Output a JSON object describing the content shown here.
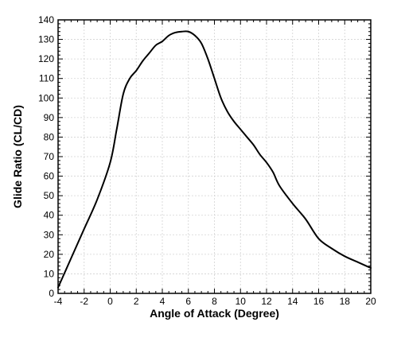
{
  "chart_data": {
    "type": "line",
    "title": "",
    "xlabel": "Angle of Attack (Degree)",
    "ylabel": "Glide Ratio (CL/CD)",
    "xlim": [
      -4,
      20
    ],
    "ylim": [
      0,
      140
    ],
    "x_ticks": [
      -4,
      -2,
      0,
      2,
      4,
      6,
      8,
      10,
      12,
      14,
      16,
      18,
      20
    ],
    "y_ticks": [
      0,
      10,
      20,
      30,
      40,
      50,
      60,
      70,
      80,
      90,
      100,
      110,
      120,
      130,
      140
    ],
    "x_tick_labels": [
      "-4",
      "-2",
      "0",
      "2",
      "4",
      "6",
      "8",
      "10",
      "12",
      "14",
      "16",
      "18",
      "20"
    ],
    "y_tick_labels": [
      "0",
      "10",
      "20",
      "30",
      "40",
      "50",
      "60",
      "70",
      "80",
      "90",
      "100",
      "110",
      "120",
      "130",
      "140"
    ],
    "grid": true,
    "line_color": "#000000",
    "series": [
      {
        "x": [
          -4,
          -3,
          -2,
          -1,
          0,
          0.5,
          1,
          1.5,
          2,
          2.5,
          3,
          3.5,
          4,
          4.5,
          5,
          5.5,
          6,
          6.5,
          7,
          7.5,
          8,
          8.5,
          9,
          9.5,
          10,
          10.5,
          11,
          11.5,
          12,
          12.5,
          13,
          14,
          15,
          16,
          17,
          18,
          19,
          20
        ],
        "y": [
          3,
          18,
          33,
          48,
          67,
          84,
          102,
          110,
          114,
          119,
          123,
          127,
          129,
          132,
          133.5,
          134,
          134,
          132,
          128,
          120,
          110,
          100,
          93,
          88,
          84,
          80,
          76,
          71,
          67,
          62,
          55,
          46,
          38,
          28,
          23,
          19,
          16,
          13
        ]
      }
    ]
  }
}
